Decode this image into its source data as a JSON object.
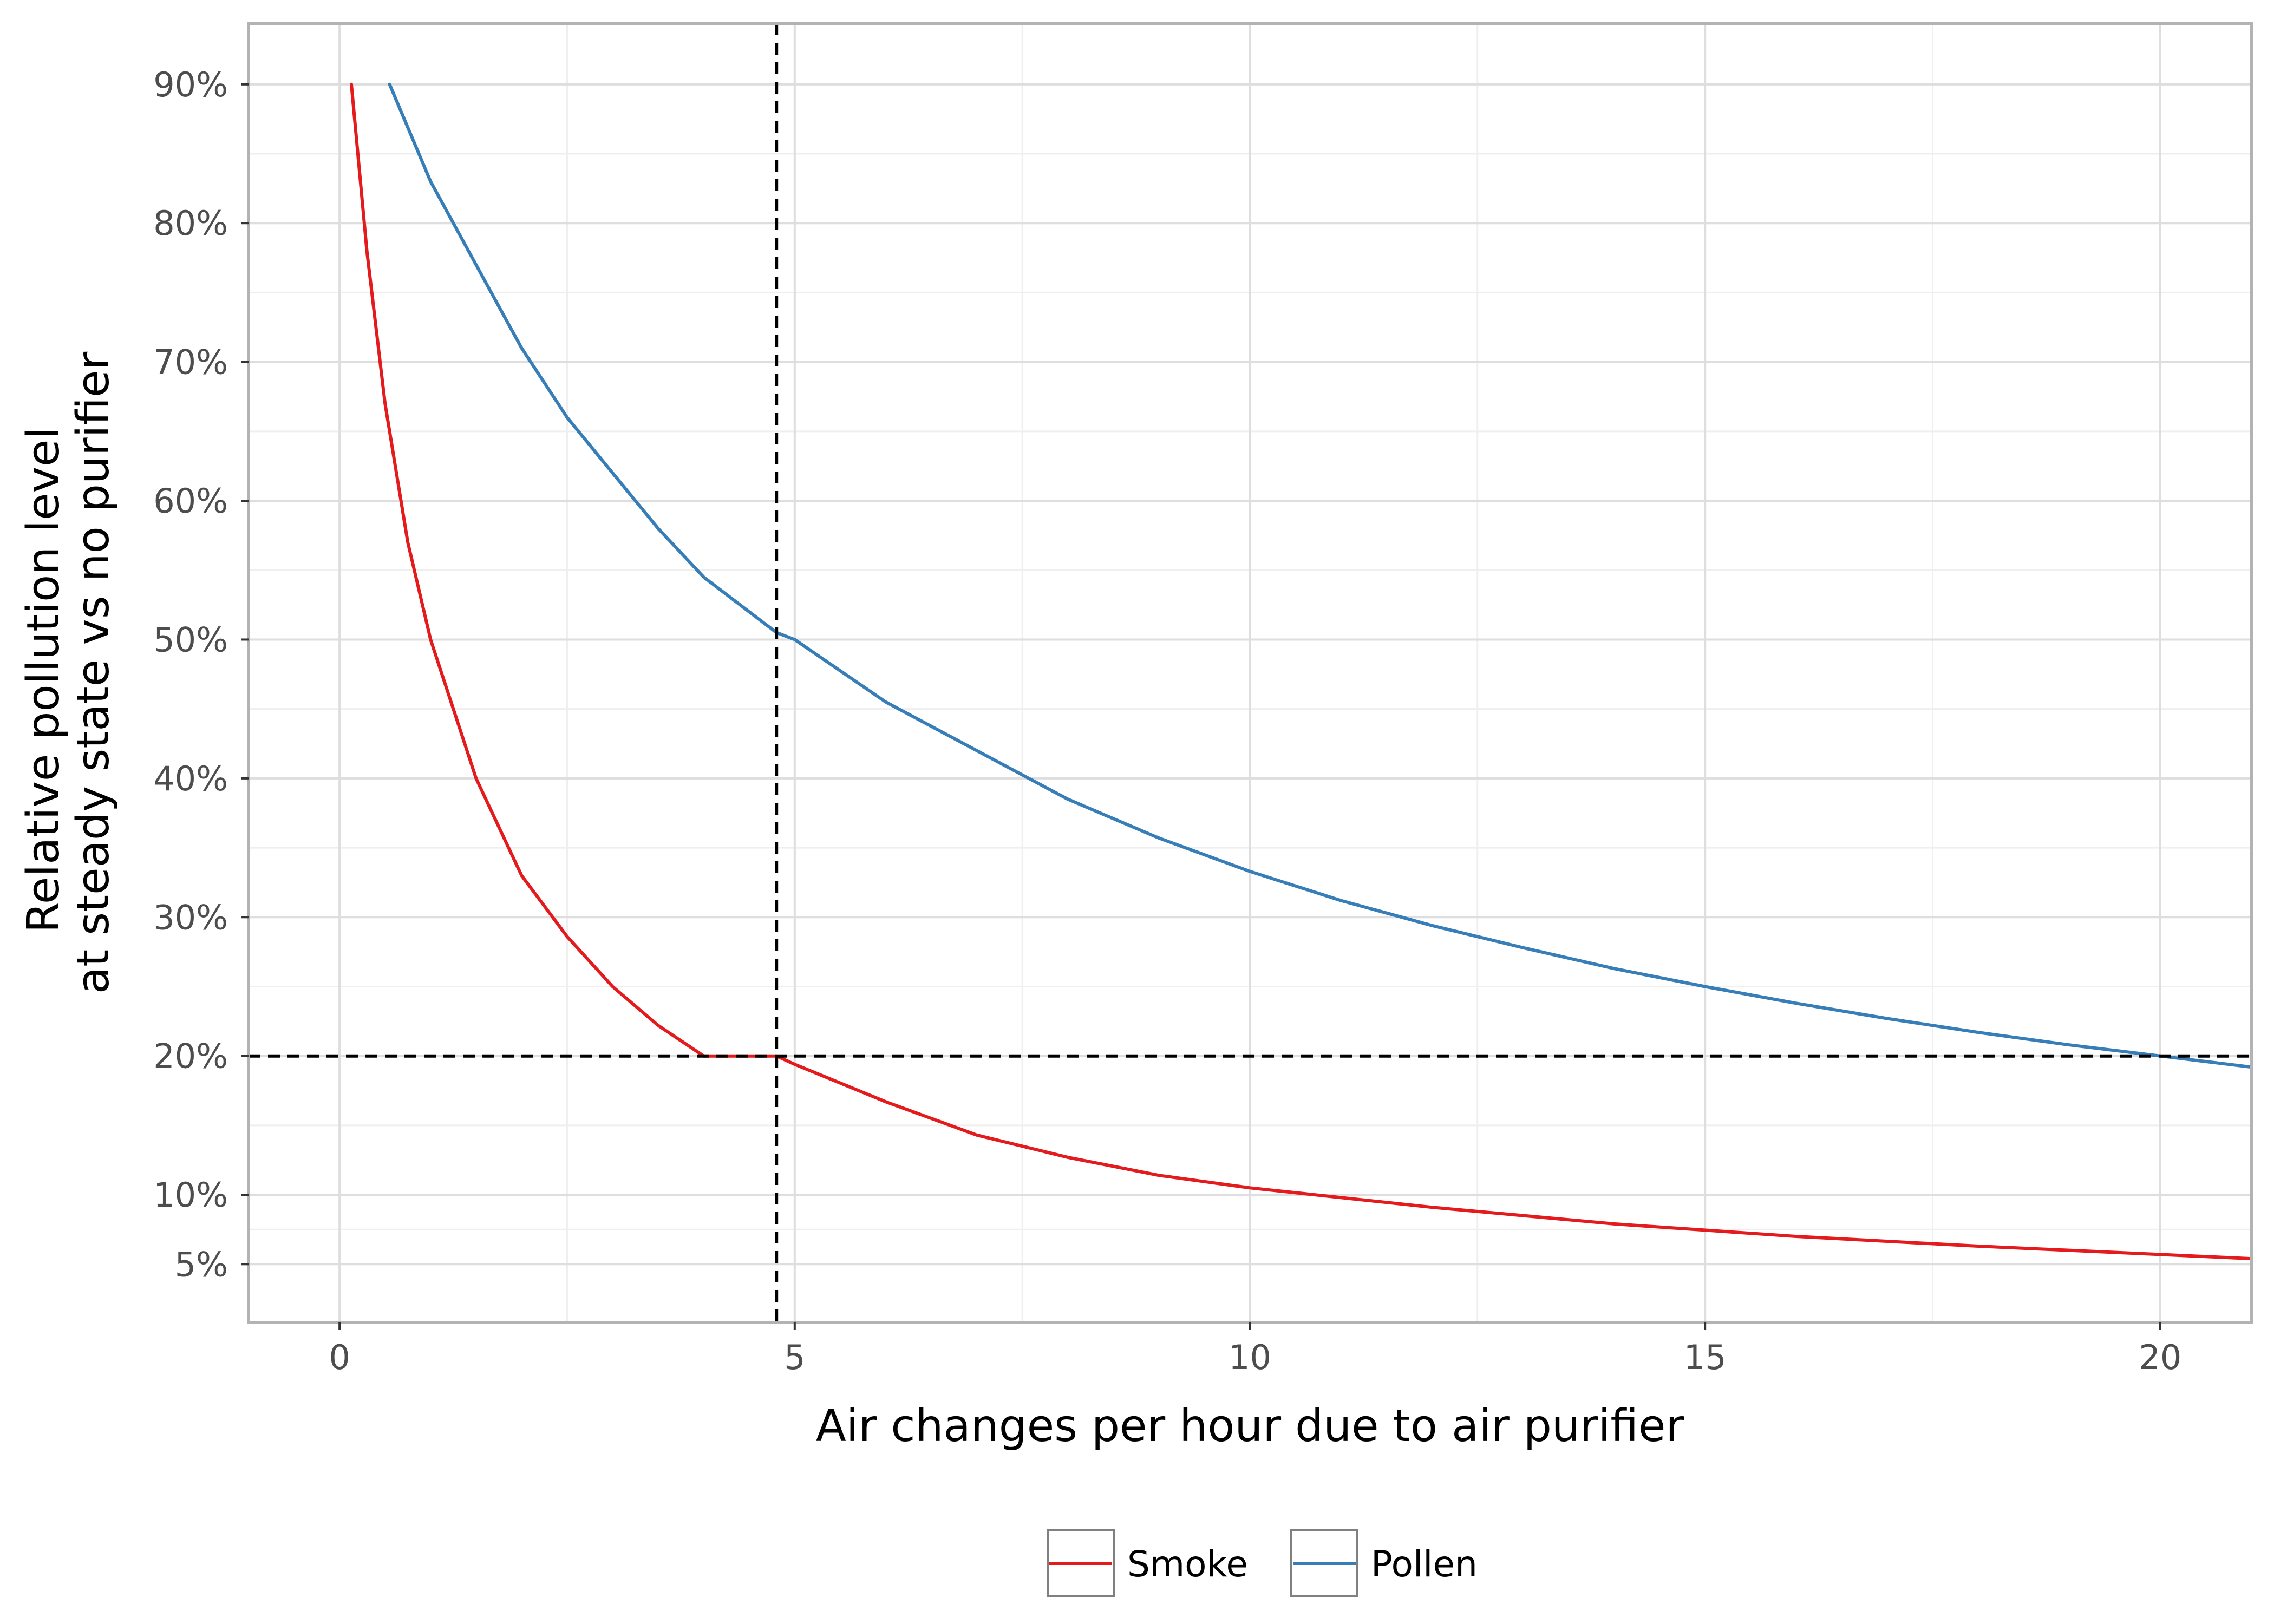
{
  "chart_data": {
    "type": "line",
    "title": "",
    "xlabel": "Air changes per hour due to air purifier",
    "ylabel_lines": [
      "Relative pollution level",
      "at steady state vs no purifier"
    ],
    "xlim": [
      -1,
      21
    ],
    "ylim": [
      0.008,
      0.944
    ],
    "x_ticks": [
      0,
      5,
      10,
      15,
      20
    ],
    "x_tick_labels": [
      "0",
      "5",
      "10",
      "15",
      "20"
    ],
    "y_ticks": [
      0.05,
      0.1,
      0.2,
      0.3,
      0.4,
      0.5,
      0.6,
      0.7,
      0.8,
      0.9
    ],
    "y_tick_labels": [
      "5%",
      "10%",
      "20%",
      "30%",
      "40%",
      "50%",
      "60%",
      "70%",
      "80%",
      "90%"
    ],
    "grid": true,
    "legend_position": "bottom",
    "series": [
      {
        "name": "Smoke",
        "color": "#e41a1c",
        "points": [
          [
            0.13,
            0.9
          ],
          [
            0.3,
            0.78
          ],
          [
            0.5,
            0.67
          ],
          [
            0.75,
            0.57
          ],
          [
            1.0,
            0.5
          ],
          [
            1.5,
            0.4
          ],
          [
            2.0,
            0.33
          ],
          [
            2.5,
            0.286
          ],
          [
            3.0,
            0.25
          ],
          [
            3.5,
            0.222
          ],
          [
            4.0,
            0.2
          ],
          [
            4.8,
            0.2
          ],
          [
            5.0,
            0.194
          ],
          [
            6.0,
            0.167
          ],
          [
            7.0,
            0.143
          ],
          [
            8.0,
            0.127
          ],
          [
            9.0,
            0.114
          ],
          [
            10.0,
            0.105
          ],
          [
            12.0,
            0.091
          ],
          [
            14.0,
            0.079
          ],
          [
            16.0,
            0.07
          ],
          [
            18.0,
            0.063
          ],
          [
            20.0,
            0.057
          ],
          [
            21.0,
            0.054
          ]
        ]
      },
      {
        "name": "Pollen",
        "color": "#377eb8",
        "points": [
          [
            0.55,
            0.9
          ],
          [
            1.0,
            0.83
          ],
          [
            1.5,
            0.77
          ],
          [
            2.0,
            0.71
          ],
          [
            2.5,
            0.66
          ],
          [
            3.0,
            0.62
          ],
          [
            3.5,
            0.58
          ],
          [
            4.0,
            0.545
          ],
          [
            4.8,
            0.505
          ],
          [
            5.0,
            0.5
          ],
          [
            6.0,
            0.455
          ],
          [
            7.0,
            0.42
          ],
          [
            8.0,
            0.385
          ],
          [
            9.0,
            0.357
          ],
          [
            10.0,
            0.333
          ],
          [
            11.0,
            0.312
          ],
          [
            12.0,
            0.294
          ],
          [
            13.0,
            0.278
          ],
          [
            14.0,
            0.263
          ],
          [
            15.0,
            0.25
          ],
          [
            16.0,
            0.238
          ],
          [
            17.0,
            0.227
          ],
          [
            18.0,
            0.217
          ],
          [
            19.0,
            0.208
          ],
          [
            20.0,
            0.2
          ],
          [
            21.0,
            0.192
          ]
        ]
      }
    ],
    "reference_lines": [
      {
        "orientation": "vertical",
        "value": 4.8,
        "color": "#000000",
        "style": "dashed"
      },
      {
        "orientation": "horizontal",
        "value": 0.2,
        "color": "#000000",
        "style": "dashed"
      }
    ]
  }
}
